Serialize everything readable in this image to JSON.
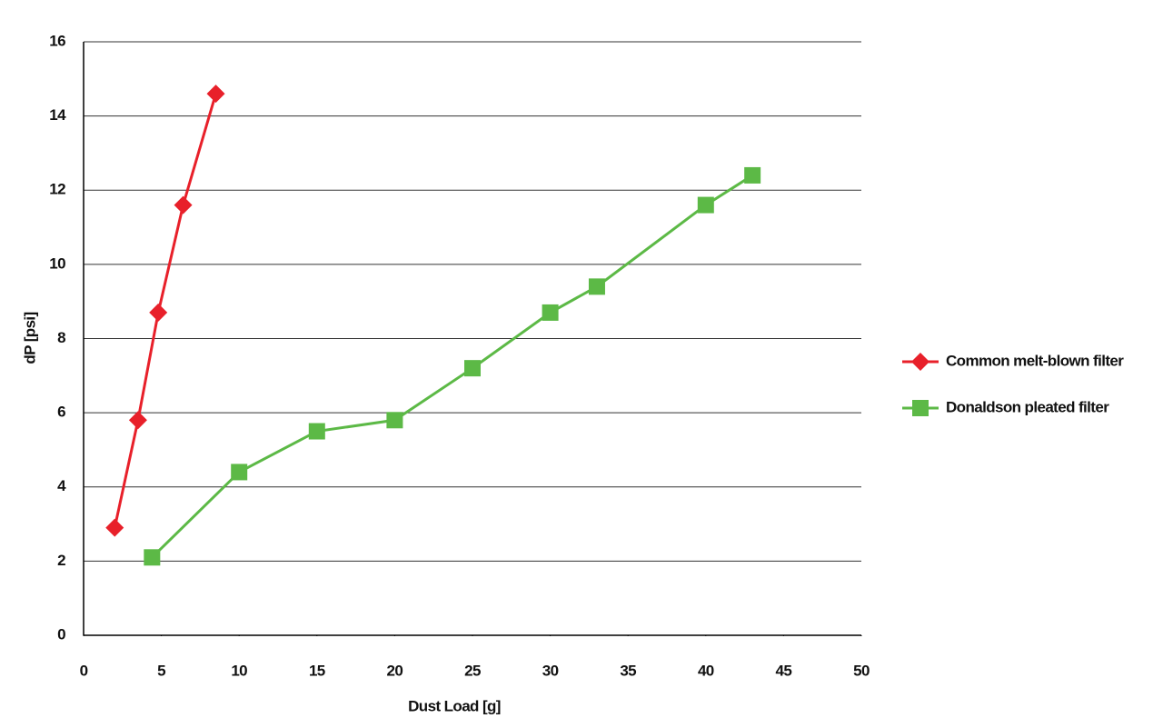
{
  "chart_data": {
    "type": "line",
    "x_label": "Dust Load [g]",
    "y_label": "dP [psi]",
    "series": [
      {
        "name": "Common melt-blown filter",
        "color": "#e8202a",
        "marker": "diamond",
        "x": [
          2,
          3.5,
          4.8,
          6.4,
          8.5
        ],
        "values": [
          2.9,
          5.8,
          8.7,
          11.6,
          14.6
        ]
      },
      {
        "name": "Donaldson pleated filter",
        "color": "#5cb946",
        "marker": "square",
        "x": [
          4.4,
          10,
          15,
          20,
          25,
          30,
          33,
          40,
          43
        ],
        "values": [
          2.1,
          4.4,
          5.5,
          5.8,
          7.2,
          8.7,
          9.4,
          11.6,
          12.4
        ]
      }
    ],
    "xlim": [
      0,
      50
    ],
    "xticks": [
      0,
      5,
      10,
      15,
      20,
      25,
      30,
      35,
      40,
      45,
      50
    ],
    "ylim": [
      0,
      16
    ],
    "yticks": [
      0,
      2,
      4,
      6,
      8,
      10,
      12,
      14,
      16
    ],
    "grid": true,
    "legend": "right"
  }
}
